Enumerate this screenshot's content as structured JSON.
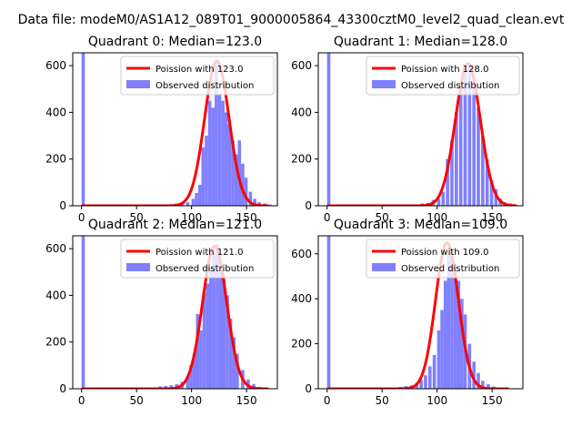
{
  "figure": {
    "suptitle": "Data file: modeM0/AS1A12_089T01_9000005864_43300cztM0_level2_quad_clean.evt"
  },
  "colors": {
    "histogram": "#8080ff",
    "fit_line": "#ff0000",
    "axes": "#000000"
  },
  "chart_data": [
    {
      "type": "bar",
      "title": "Quadrant 0: Median=123.0",
      "xlim": [
        -8,
        178
      ],
      "ylim": [
        0,
        655
      ],
      "xticks": [
        0,
        50,
        100,
        150
      ],
      "yticks": [
        0,
        200,
        400,
        600
      ],
      "zero_bin": {
        "x": 0,
        "count": 1000
      },
      "poisson_mean": 123.0,
      "curve_range": [
        0,
        170
      ],
      "curve_peak": 620,
      "histogram": {
        "x": [
          80,
          85,
          90,
          95,
          100,
          103,
          106,
          109,
          112,
          115,
          118,
          121,
          124,
          127,
          130,
          133,
          136,
          139,
          142,
          145,
          148,
          152,
          156,
          160,
          165,
          170
        ],
        "counts": [
          5,
          10,
          12,
          15,
          30,
          55,
          90,
          250,
          300,
          450,
          420,
          620,
          480,
          450,
          400,
          350,
          280,
          220,
          280,
          180,
          120,
          60,
          30,
          15,
          10,
          5
        ]
      },
      "legend": {
        "position": "top-right",
        "entries": [
          "Poission with 123.0",
          "Observed distribution"
        ]
      }
    },
    {
      "type": "bar",
      "title": "Quadrant 1: Median=128.0",
      "xlim": [
        -8,
        178
      ],
      "ylim": [
        0,
        655
      ],
      "xticks": [
        0,
        50,
        100,
        150
      ],
      "yticks": [
        0,
        200,
        400,
        600
      ],
      "zero_bin": {
        "x": 0,
        "count": 1000
      },
      "poisson_mean": 128.0,
      "curve_range": [
        0,
        172
      ],
      "curve_peak": 610,
      "histogram": {
        "x": [
          85,
          90,
          95,
          100,
          104,
          108,
          112,
          116,
          120,
          124,
          128,
          132,
          136,
          140,
          144,
          148,
          152,
          156,
          160,
          165,
          170
        ],
        "counts": [
          10,
          12,
          25,
          30,
          60,
          200,
          280,
          400,
          520,
          600,
          610,
          500,
          420,
          300,
          200,
          110,
          70,
          30,
          15,
          10,
          5
        ]
      },
      "legend": {
        "position": "top-right",
        "entries": [
          "Poission with 128.0",
          "Observed distribution"
        ]
      }
    },
    {
      "type": "bar",
      "title": "Quadrant 2: Median=121.0",
      "xlim": [
        -8,
        178
      ],
      "ylim": [
        0,
        655
      ],
      "xticks": [
        0,
        50,
        100,
        150
      ],
      "yticks": [
        0,
        200,
        400,
        600
      ],
      "zero_bin": {
        "x": 0,
        "count": 1000
      },
      "poisson_mean": 121.0,
      "curve_range": [
        0,
        170
      ],
      "curve_peak": 610,
      "histogram": {
        "x": [
          70,
          75,
          80,
          85,
          90,
          95,
          98,
          101,
          104,
          107,
          110,
          113,
          116,
          119,
          122,
          125,
          128,
          131,
          134,
          137,
          140,
          145,
          150,
          155,
          160
        ],
        "counts": [
          10,
          12,
          15,
          20,
          30,
          55,
          100,
          150,
          320,
          250,
          410,
          450,
          520,
          580,
          620,
          500,
          470,
          400,
          300,
          220,
          150,
          80,
          40,
          20,
          8
        ]
      },
      "legend": {
        "position": "top-right",
        "entries": [
          "Poission with 121.0",
          "Observed distribution"
        ]
      }
    },
    {
      "type": "bar",
      "title": "Quadrant 3: Median=109.0",
      "xlim": [
        -8,
        178
      ],
      "ylim": [
        0,
        680
      ],
      "xticks": [
        0,
        50,
        100,
        150
      ],
      "yticks": [
        0,
        200,
        400,
        600
      ],
      "zero_bin": {
        "x": 0,
        "count": 1000
      },
      "poisson_mean": 109.0,
      "curve_range": [
        0,
        165
      ],
      "curve_peak": 650,
      "histogram": {
        "x": [
          60,
          65,
          70,
          75,
          80,
          84,
          88,
          92,
          96,
          100,
          103,
          106,
          109,
          112,
          115,
          118,
          121,
          124,
          128,
          132,
          136,
          140,
          145,
          150,
          160
        ],
        "counts": [
          5,
          8,
          12,
          15,
          25,
          40,
          60,
          100,
          150,
          260,
          350,
          480,
          600,
          600,
          560,
          480,
          400,
          330,
          200,
          120,
          70,
          35,
          20,
          10,
          5
        ]
      },
      "legend": {
        "position": "top-right",
        "entries": [
          "Poission with 109.0",
          "Observed distribution"
        ]
      }
    }
  ]
}
